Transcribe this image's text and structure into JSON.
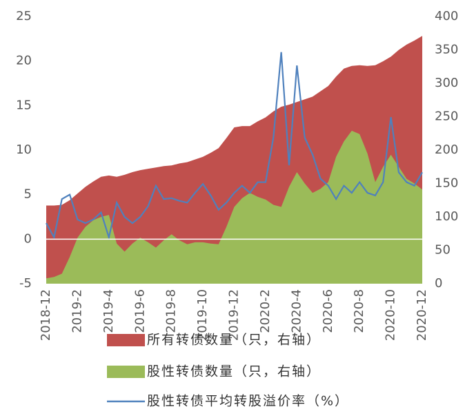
{
  "chart_data": {
    "type": "area_line",
    "categories": [
      "2018-12",
      null,
      null,
      null,
      "2019-2",
      null,
      null,
      null,
      "2019-4",
      null,
      null,
      null,
      "2019-6",
      null,
      null,
      null,
      "2019-8",
      null,
      null,
      null,
      "2019-10",
      null,
      null,
      null,
      "2019-12",
      null,
      null,
      null,
      "2020-2",
      null,
      null,
      null,
      "2020-4",
      null,
      null,
      null,
      "2020-6",
      null,
      null,
      null,
      "2020-8",
      null,
      null,
      null,
      "2020-10",
      null,
      null,
      null,
      "2020-12"
    ],
    "ylim": [
      -5,
      25
    ],
    "yticks": [
      -5,
      0,
      5,
      10,
      15,
      20,
      25
    ],
    "y2lim": [
      0,
      400
    ],
    "y2ticks": [
      0,
      50,
      100,
      150,
      200,
      250,
      300,
      350,
      400
    ],
    "series": [
      {
        "name": "所有转债数量（只，右轴）",
        "color": "#c0504d",
        "axis": "y2",
        "kind": "area",
        "values": [
          117,
          117,
          118,
          125,
          135,
          145,
          153,
          160,
          162,
          160,
          163,
          167,
          170,
          172,
          174,
          176,
          177,
          180,
          182,
          186,
          190,
          196,
          203,
          218,
          234,
          236,
          236,
          243,
          249,
          258,
          265,
          268,
          272,
          276,
          280,
          288,
          296,
          310,
          322,
          326,
          327,
          326,
          327,
          333,
          340,
          350,
          358,
          364,
          371
        ]
      },
      {
        "name": "股性转债数量（只，右轴）",
        "color": "#9bbb59",
        "axis": "y2",
        "kind": "area",
        "values": [
          8,
          10,
          15,
          40,
          69,
          85,
          95,
          100,
          103,
          60,
          48,
          60,
          69,
          62,
          54,
          65,
          74,
          65,
          59,
          62,
          62,
          60,
          59,
          85,
          115,
          128,
          136,
          130,
          126,
          118,
          115,
          145,
          167,
          150,
          136,
          142,
          152,
          190,
          213,
          229,
          224,
          195,
          152,
          175,
          193,
          175,
          157,
          150,
          141
        ]
      },
      {
        "name": "股性转债平均转股溢价率（%）",
        "color": "#4f81bd",
        "axis": "y",
        "kind": "line",
        "values": [
          1.8,
          0.2,
          4.5,
          5,
          2.2,
          1.8,
          2.2,
          3,
          0.2,
          4.1,
          2.5,
          1.8,
          2.5,
          3.7,
          6,
          4.5,
          4.6,
          4.3,
          4.1,
          5.2,
          6.2,
          4.9,
          3.3,
          4.1,
          5.2,
          6,
          5.2,
          6.4,
          6.4,
          11.4,
          21,
          8.3,
          19.5,
          11.4,
          9.5,
          6.8,
          6,
          4.5,
          6,
          5.2,
          6.4,
          5.2,
          4.9,
          6.4,
          13.7,
          7.5,
          6.4,
          6,
          7.5
        ]
      }
    ]
  }
}
